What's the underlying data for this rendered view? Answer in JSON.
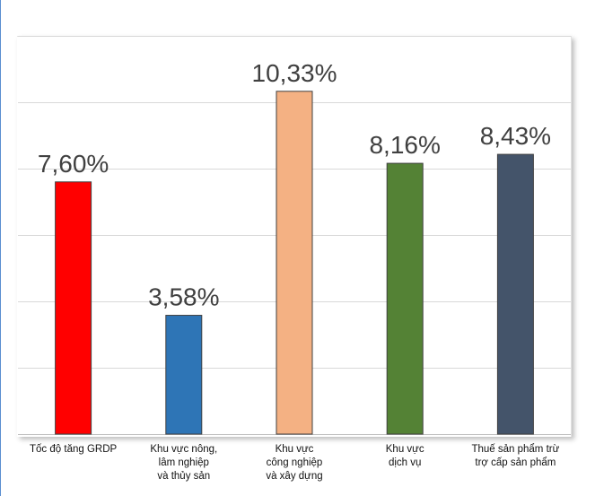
{
  "chart_data": {
    "type": "bar",
    "categories": [
      "Tốc độ tăng GRDP",
      "Khu vực nông,\nlâm nghiệp\nvà thủy sản",
      "Khu vực\ncông nghiệp\nvà xây dựng",
      "Khu vực\ndịch vụ",
      "Thuế sản phẩm trừ\ntrợ cấp sản phẩm"
    ],
    "values": [
      7.6,
      3.58,
      10.33,
      8.16,
      8.43
    ],
    "data_labels": [
      "7,60%",
      "3,58%",
      "10,33%",
      "8,16%",
      "8,43%"
    ],
    "colors": [
      "#ff0000",
      "#2e75b6",
      "#f4b183",
      "#548235",
      "#44546a"
    ],
    "ylim": [
      0,
      12
    ],
    "yticks": [
      0,
      2,
      4,
      6,
      8,
      10,
      12
    ],
    "grid": true,
    "legend": "none",
    "title": "",
    "xlabel": "",
    "ylabel": ""
  }
}
